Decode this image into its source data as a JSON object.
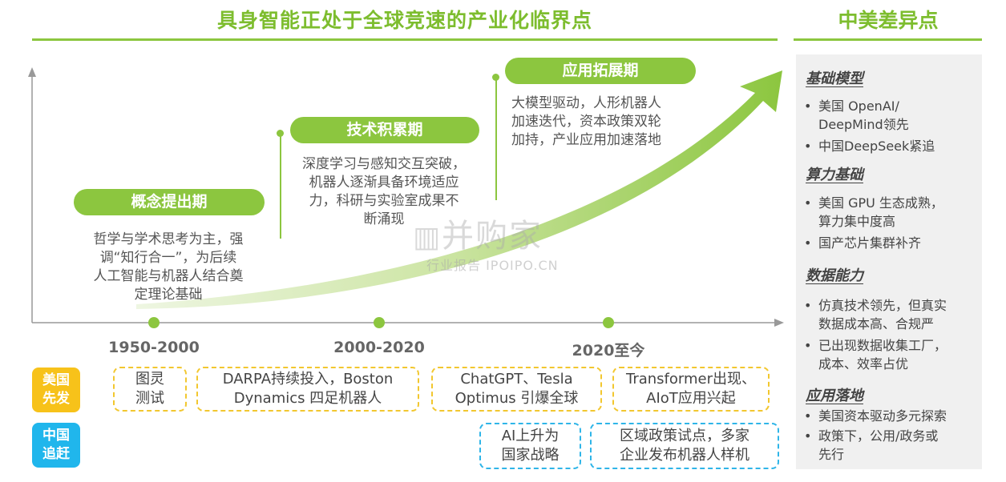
{
  "main_title": "具身智能正处于全球竞速的产业化临界点",
  "side_title": "中美差异点",
  "phases": [
    {
      "label": "概念提出期",
      "text": [
        "哲学与学术思考为主，强",
        "调“知行合一”，为后续",
        "人工智能与机器人结合奠",
        "定理论基础"
      ]
    },
    {
      "label": "技术积累期",
      "text": [
        "深度学习与感知交互突破，",
        "机器人逐渐具备环境适应",
        "力，科研与实验室成果不",
        "断涌现"
      ]
    },
    {
      "label": "应用拓展期",
      "text": [
        "大模型驱动，人形机器人",
        "加速迭代，资本政策双轮",
        "加持，产业应用加速落地"
      ]
    }
  ],
  "years": [
    "1950-2000",
    "2000-2020",
    "2020至今"
  ],
  "regions": {
    "us": [
      "美国",
      "先发"
    ],
    "cn": [
      "中国",
      "追赶"
    ]
  },
  "us_events": [
    [
      "图灵",
      "测试"
    ],
    [
      "DARPA持续投入，Boston",
      "Dynamics 四足机器人"
    ],
    [
      "ChatGPT、Tesla",
      "Optimus 引爆全球"
    ],
    [
      "Transformer出现、",
      "AIoT应用兴起"
    ]
  ],
  "cn_events": [
    [
      "AI上升为",
      "国家战略"
    ],
    [
      "区域政策试点，多家",
      "企业发布机器人样机"
    ]
  ],
  "diff_sections": [
    {
      "title": "基础模型",
      "bullets": [
        [
          "美国 OpenAI/",
          "DeepMind领先"
        ],
        [
          "中国DeepSeek紧追"
        ]
      ]
    },
    {
      "title": "算力基础",
      "bullets": [
        [
          "美国 GPU 生态成熟，",
          "算力集中度高"
        ],
        [
          "国产芯片集群补齐"
        ]
      ]
    },
    {
      "title": "数据能力",
      "bullets": [
        [
          "仿真技术领先，但真实",
          "数据成本高、合规严"
        ],
        [
          "已出现数据收集工厂，",
          "成本、效率占优"
        ]
      ]
    },
    {
      "title": "应用落地",
      "bullets": [
        [
          "美国资本驱动多元探索"
        ],
        [
          "政策下，公用/政务或",
          "先行"
        ]
      ]
    }
  ],
  "watermark": {
    "brand": "并购家",
    "sub": "行业报告 IPOIPO.CN"
  },
  "colors": {
    "green": "#8cc63f",
    "title_green": "#7dbd2e",
    "us_yellow": "#f7c21a",
    "cn_blue": "#20b6ec",
    "panel_gray": "#f0f0f0"
  }
}
